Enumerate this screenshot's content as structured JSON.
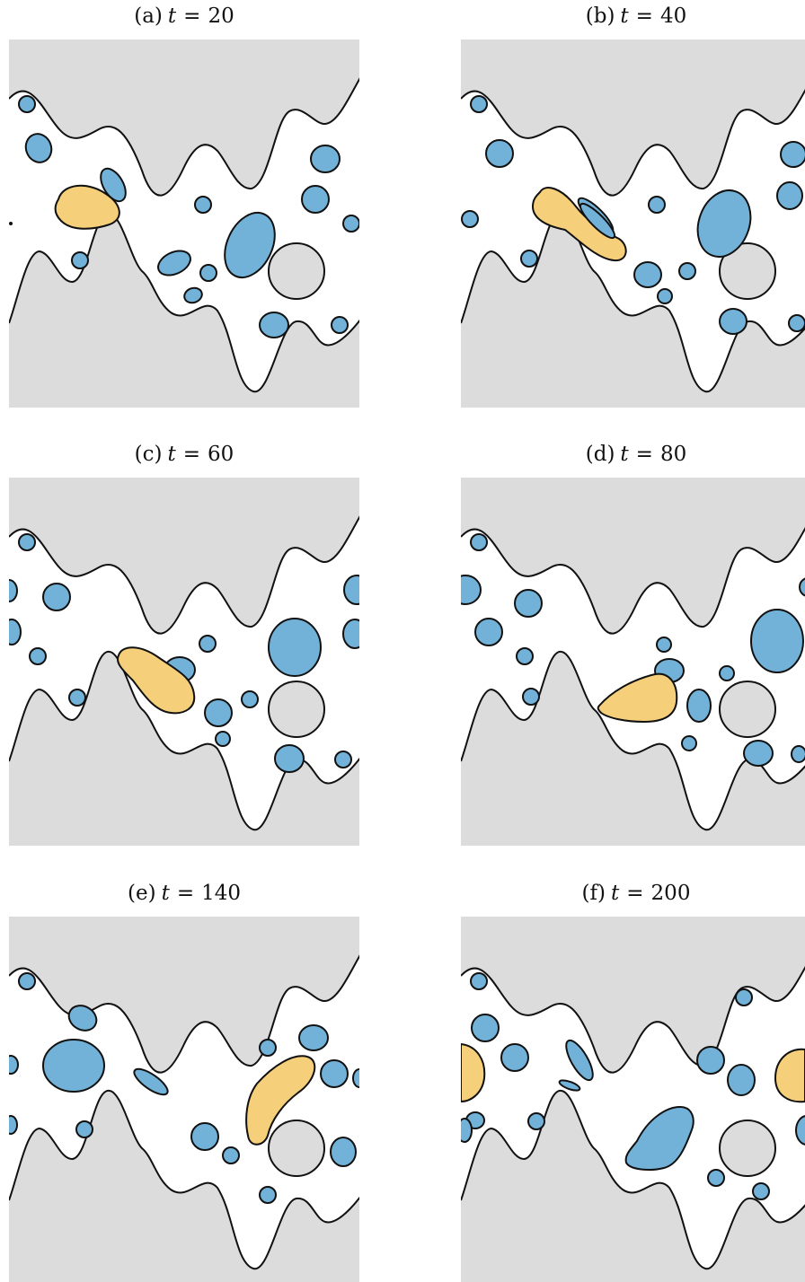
{
  "colors": {
    "wall": "#dcdcdc",
    "fluid": "#ffffff",
    "blue_cell": "#72b2d8",
    "yellow_cell": "#f5cf7a",
    "obstacle": "#dcdcdc",
    "outline": "#111111"
  },
  "panels": [
    {
      "label": "(a)",
      "var": "t",
      "eq": "=",
      "value": "20"
    },
    {
      "label": "(b)",
      "var": "t",
      "eq": "=",
      "value": "40"
    },
    {
      "label": "(c)",
      "var": "t",
      "eq": "=",
      "value": "60"
    },
    {
      "label": "(d)",
      "var": "t",
      "eq": "=",
      "value": "80"
    },
    {
      "label": "(e)",
      "var": "t",
      "eq": "=",
      "value": "140"
    },
    {
      "label": "(f)",
      "var": "t",
      "eq": "=",
      "value": "200"
    }
  ]
}
